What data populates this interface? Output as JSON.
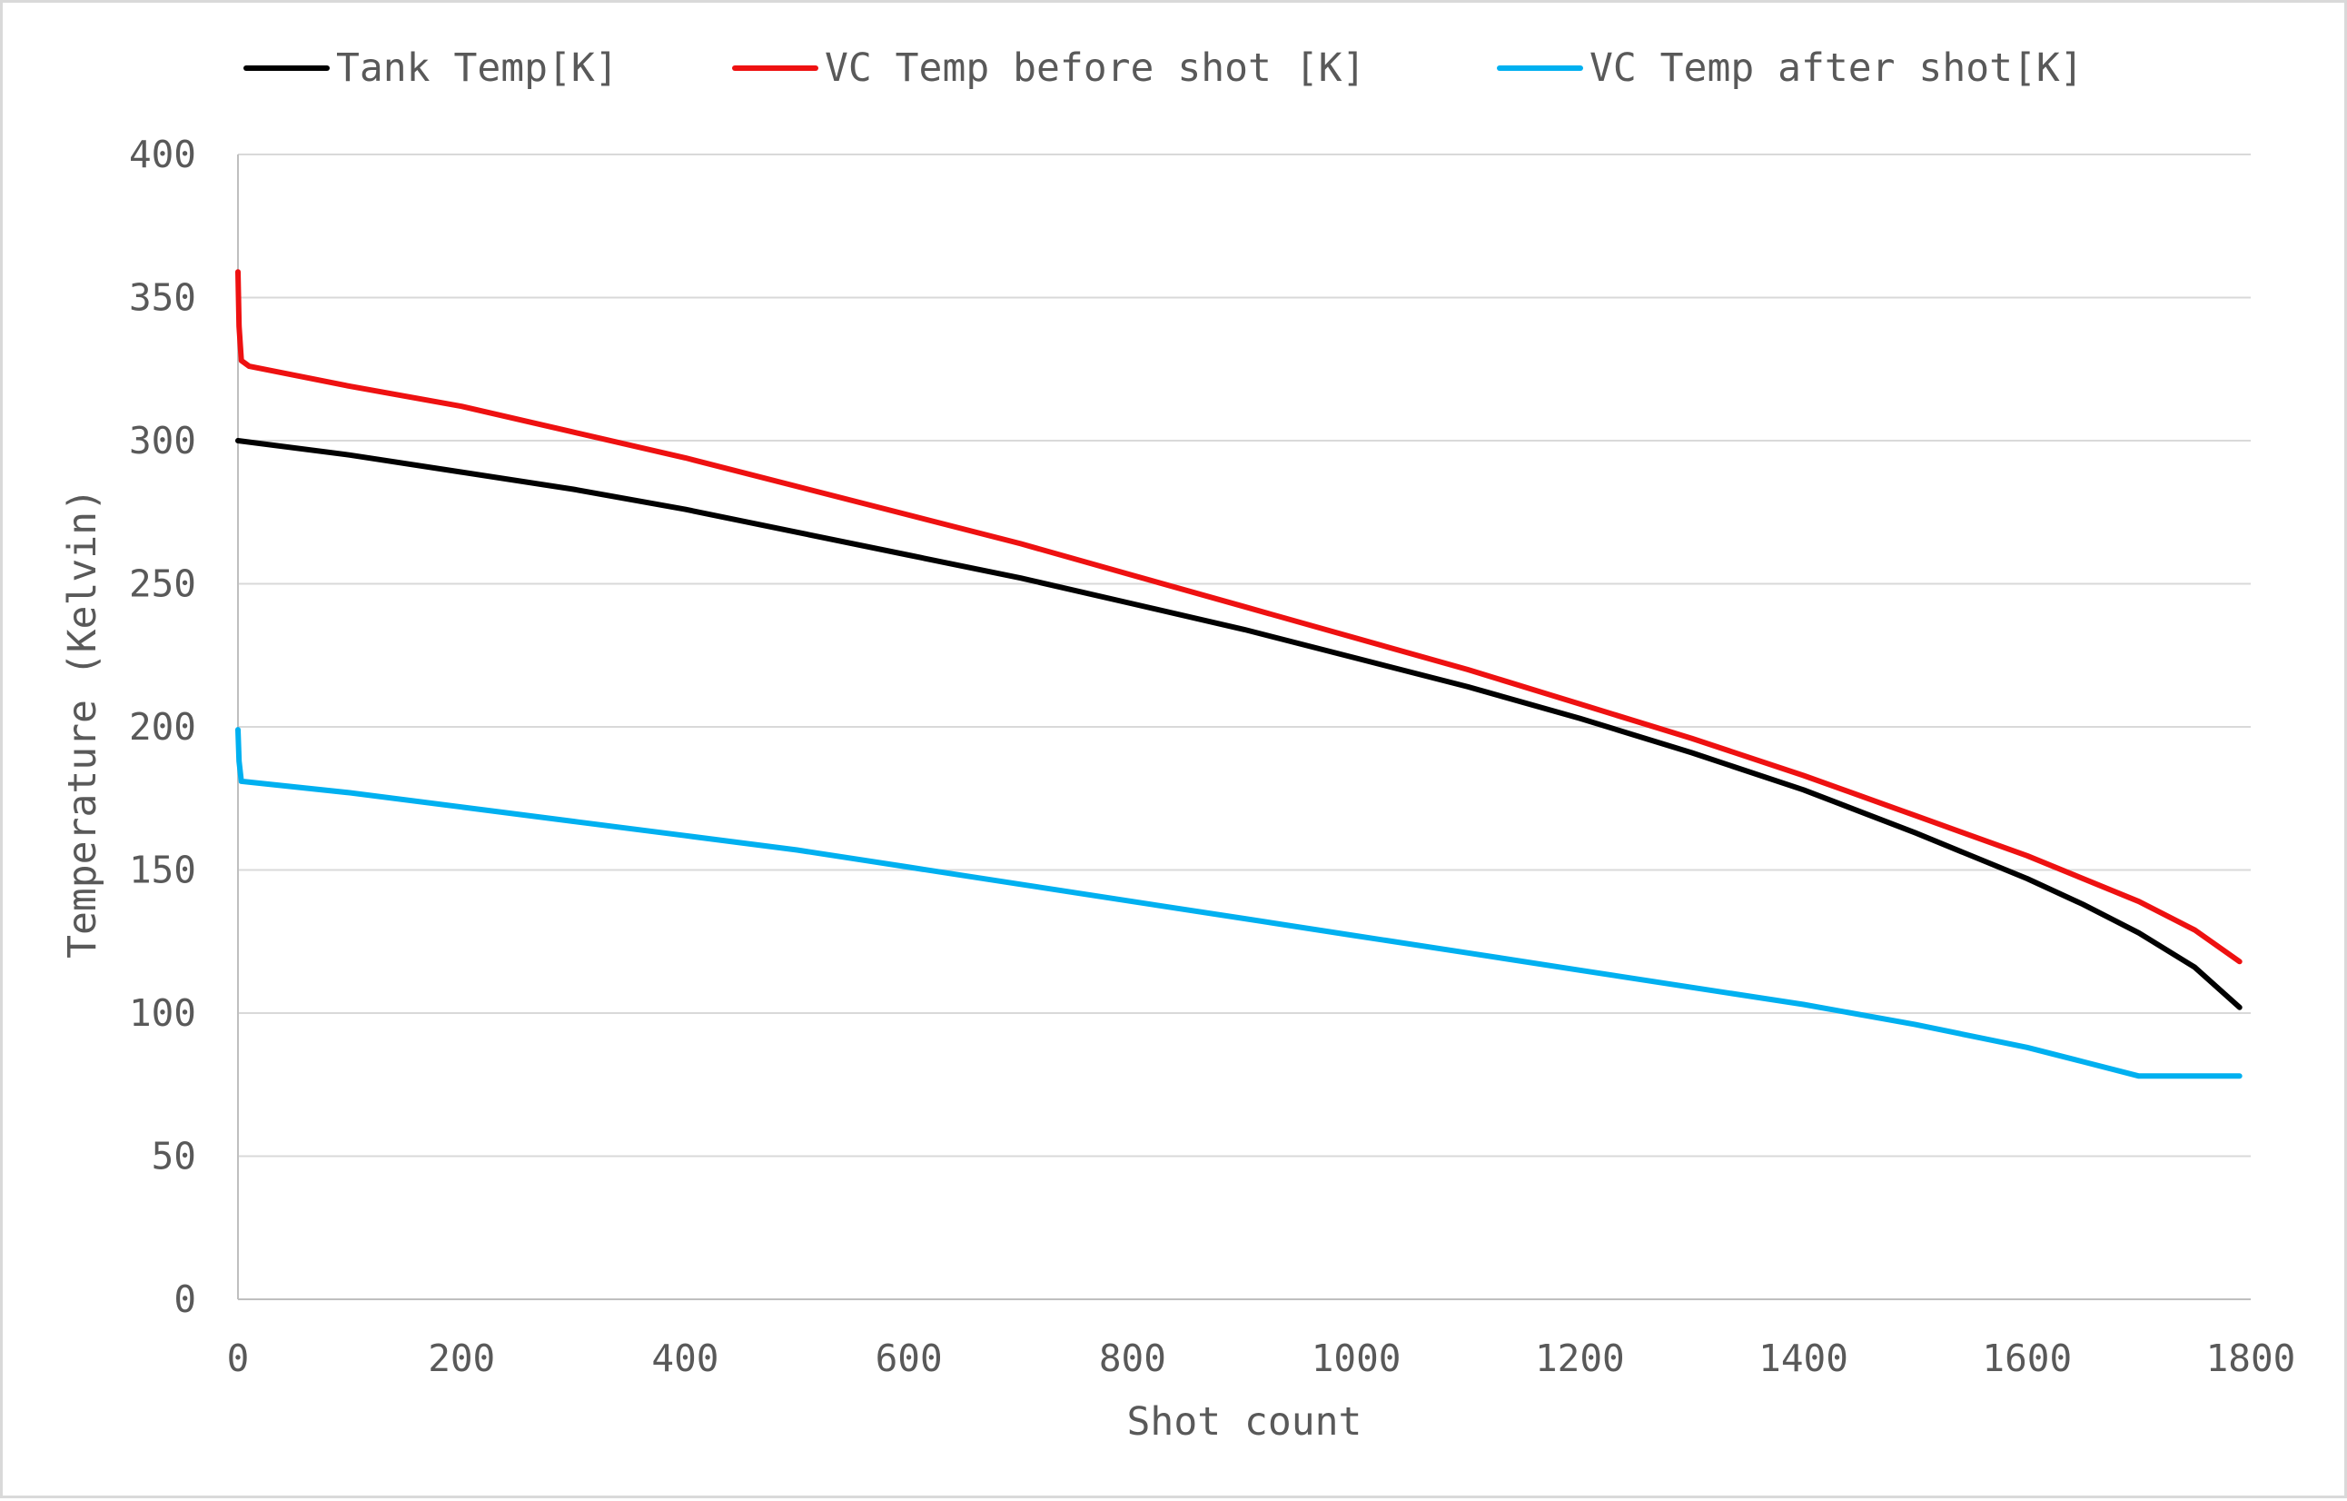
{
  "chart_data": {
    "type": "line",
    "title": "",
    "xlabel": "Shot count",
    "ylabel": "Temperature (Kelvin)",
    "xlim": [
      0,
      1800
    ],
    "ylim": [
      0,
      400
    ],
    "x_ticks": [
      0,
      200,
      400,
      600,
      800,
      1000,
      1200,
      1400,
      1600,
      1800
    ],
    "y_ticks": [
      0,
      50,
      100,
      150,
      200,
      250,
      300,
      350,
      400
    ],
    "grid": "horizontal",
    "legend_position": "top",
    "series": [
      {
        "name": "Tank Temp[K]",
        "color": "#000000",
        "points": [
          [
            0,
            300
          ],
          [
            100,
            295
          ],
          [
            200,
            289
          ],
          [
            300,
            283
          ],
          [
            400,
            276
          ],
          [
            500,
            268
          ],
          [
            600,
            260
          ],
          [
            700,
            252
          ],
          [
            800,
            243
          ],
          [
            900,
            234
          ],
          [
            1000,
            224
          ],
          [
            1100,
            214
          ],
          [
            1200,
            203
          ],
          [
            1300,
            191
          ],
          [
            1400,
            178
          ],
          [
            1500,
            163
          ],
          [
            1600,
            147
          ],
          [
            1650,
            138
          ],
          [
            1700,
            128
          ],
          [
            1750,
            116
          ],
          [
            1790,
            102
          ]
        ]
      },
      {
        "name": "VC Temp before shot [K]",
        "color": "#ee1111",
        "points": [
          [
            0,
            359
          ],
          [
            1,
            340
          ],
          [
            3,
            328
          ],
          [
            10,
            326
          ],
          [
            100,
            319
          ],
          [
            200,
            312
          ],
          [
            300,
            303
          ],
          [
            400,
            294
          ],
          [
            500,
            284
          ],
          [
            600,
            274
          ],
          [
            700,
            264
          ],
          [
            800,
            253
          ],
          [
            900,
            242
          ],
          [
            1000,
            231
          ],
          [
            1100,
            220
          ],
          [
            1200,
            208
          ],
          [
            1300,
            196
          ],
          [
            1400,
            183
          ],
          [
            1500,
            169
          ],
          [
            1600,
            155
          ],
          [
            1700,
            139
          ],
          [
            1750,
            129
          ],
          [
            1790,
            118
          ]
        ]
      },
      {
        "name": "VC Temp after shot[K]",
        "color": "#00b0f0",
        "points": [
          [
            0,
            199
          ],
          [
            1,
            188
          ],
          [
            3,
            181
          ],
          [
            100,
            177
          ],
          [
            200,
            172
          ],
          [
            300,
            167
          ],
          [
            400,
            162
          ],
          [
            500,
            157
          ],
          [
            600,
            151
          ],
          [
            700,
            145
          ],
          [
            800,
            139
          ],
          [
            900,
            133
          ],
          [
            1000,
            127
          ],
          [
            1100,
            121
          ],
          [
            1200,
            115
          ],
          [
            1300,
            109
          ],
          [
            1400,
            103
          ],
          [
            1500,
            96
          ],
          [
            1600,
            88
          ],
          [
            1650,
            83
          ],
          [
            1700,
            78
          ],
          [
            1750,
            78
          ],
          [
            1790,
            78
          ]
        ]
      }
    ]
  }
}
